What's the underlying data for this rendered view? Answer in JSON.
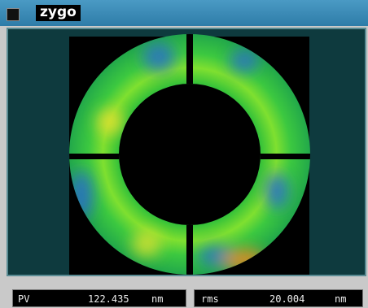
{
  "window": {
    "title": "zygo"
  },
  "stats": [
    {
      "label": "PV",
      "value": 122.435,
      "unit": "nm"
    },
    {
      "label": "rms",
      "value": 20.004,
      "unit": "nm"
    }
  ]
}
